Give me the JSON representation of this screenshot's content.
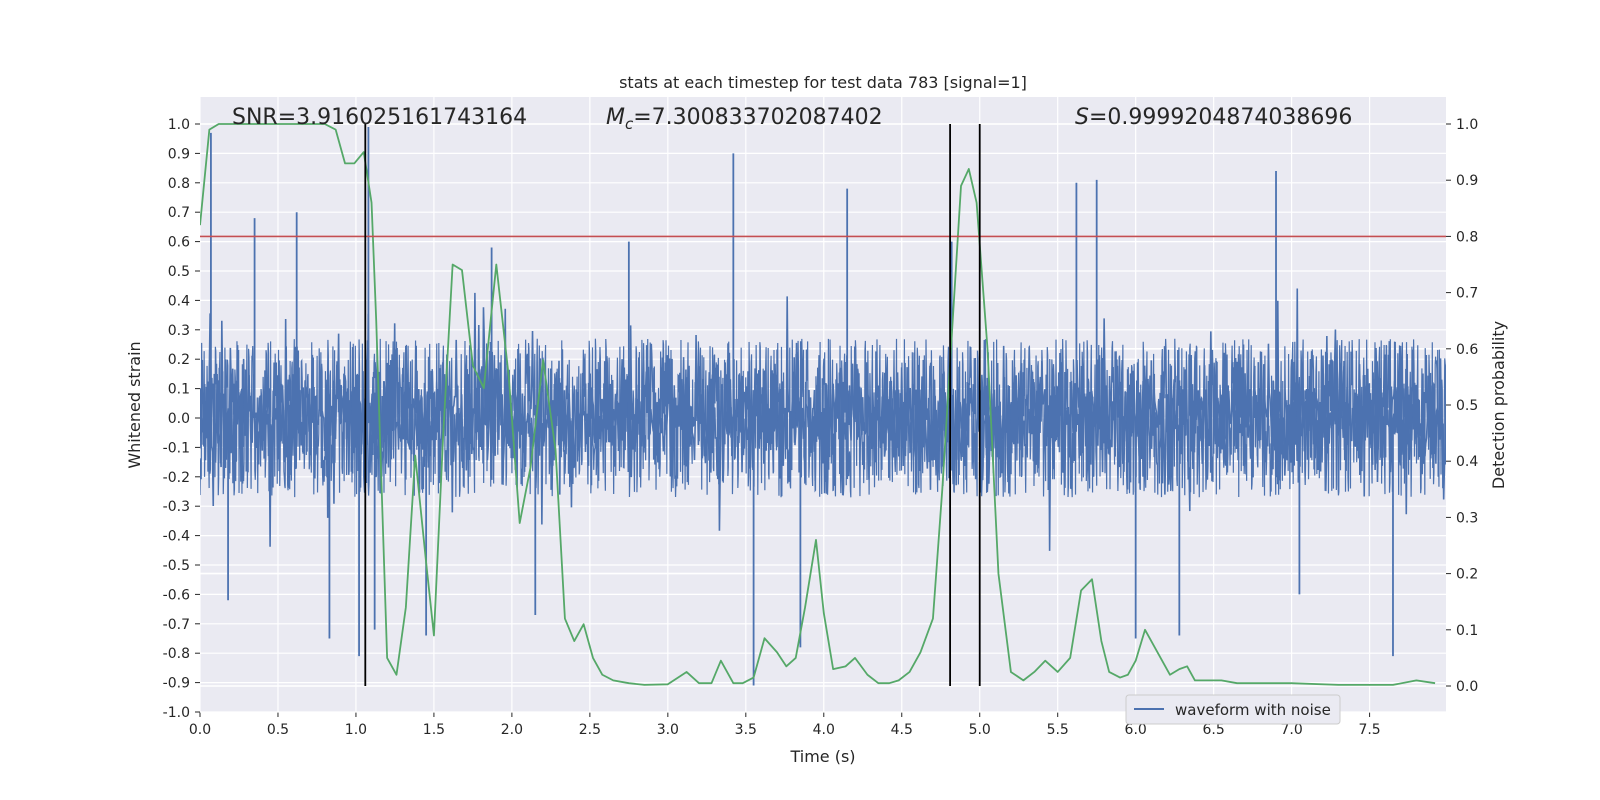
{
  "chart_data": {
    "type": "line",
    "title": "stats at each timestep for test data 783 [signal=1]",
    "xlabel": "Time (s)",
    "ylabel": "Whitened strain",
    "ylabel_right": "Detection probability",
    "xlim": [
      0.0,
      7.99
    ],
    "ylim": [
      -1.0,
      1.0
    ],
    "ylim_right": [
      -0.05,
      1.05
    ],
    "xticks": [
      "0.0",
      "0.5",
      "1.0",
      "1.5",
      "2.0",
      "2.5",
      "3.0",
      "3.5",
      "4.0",
      "4.5",
      "5.0",
      "5.5",
      "6.0",
      "6.5",
      "7.0",
      "7.5"
    ],
    "yticks": [
      "1.0",
      "0.9",
      "0.8",
      "0.7",
      "0.6",
      "0.5",
      "0.4",
      "0.3",
      "0.2",
      "0.1",
      "0.0",
      "-0.1",
      "-0.2",
      "-0.3",
      "-0.4",
      "-0.5",
      "-0.6",
      "-0.7",
      "-0.8",
      "-0.9",
      "-1.0"
    ],
    "yticks_right": [
      "1.0",
      "0.9",
      "0.8",
      "0.7",
      "0.6",
      "0.5",
      "0.4",
      "0.3",
      "0.2",
      "0.1",
      "0.0"
    ],
    "annotations": {
      "snr": "SNR=3.916025161743164",
      "mc_symbol": "M",
      "mc_subscript": "c",
      "mc_value": "=7.300833702087402",
      "s_symbol": "S",
      "s_value": "=0.9999204874038696"
    },
    "threshold_line": {
      "y_right": 0.8,
      "color": "#c44e52"
    },
    "vertical_markers": [
      1.06,
      4.81,
      5.0
    ],
    "series": [
      {
        "name": "waveform with noise",
        "axis": "left",
        "color": "#4c72b0",
        "description": "dense whitened strain noise, envelope approx ±0.3 with spikes to ±0.9",
        "peaks": [
          {
            "x": 0.07,
            "y": 0.97
          },
          {
            "x": 0.18,
            "y": -0.62
          },
          {
            "x": 0.35,
            "y": 0.68
          },
          {
            "x": 0.62,
            "y": 0.7
          },
          {
            "x": 0.83,
            "y": -0.75
          },
          {
            "x": 1.02,
            "y": -0.81
          },
          {
            "x": 1.08,
            "y": 0.99
          },
          {
            "x": 1.12,
            "y": -0.72
          },
          {
            "x": 1.45,
            "y": -0.74
          },
          {
            "x": 1.87,
            "y": 0.58
          },
          {
            "x": 2.15,
            "y": -0.67
          },
          {
            "x": 2.75,
            "y": 0.6
          },
          {
            "x": 3.42,
            "y": 0.9
          },
          {
            "x": 3.55,
            "y": -0.91
          },
          {
            "x": 3.85,
            "y": -0.78
          },
          {
            "x": 4.15,
            "y": 0.78
          },
          {
            "x": 4.82,
            "y": 0.6
          },
          {
            "x": 5.62,
            "y": 0.8
          },
          {
            "x": 5.75,
            "y": 0.81
          },
          {
            "x": 6.0,
            "y": -0.75
          },
          {
            "x": 6.28,
            "y": -0.74
          },
          {
            "x": 6.9,
            "y": 0.84
          },
          {
            "x": 7.05,
            "y": -0.6
          },
          {
            "x": 7.65,
            "y": -0.81
          }
        ]
      },
      {
        "name": "detection probability",
        "axis": "right",
        "color": "#55a868",
        "x": [
          0.0,
          0.06,
          0.12,
          0.19,
          0.3,
          0.5,
          0.7,
          0.8,
          0.87,
          0.93,
          0.99,
          1.05,
          1.1,
          1.13,
          1.2,
          1.26,
          1.32,
          1.38,
          1.45,
          1.5,
          1.56,
          1.62,
          1.68,
          1.75,
          1.82,
          1.9,
          1.98,
          2.05,
          2.12,
          2.2,
          2.28,
          2.34,
          2.4,
          2.46,
          2.52,
          2.58,
          2.65,
          2.75,
          2.85,
          3.0,
          3.12,
          3.2,
          3.28,
          3.34,
          3.42,
          3.48,
          3.55,
          3.62,
          3.7,
          3.76,
          3.82,
          3.88,
          3.95,
          4.0,
          4.06,
          4.14,
          4.2,
          4.28,
          4.35,
          4.42,
          4.48,
          4.55,
          4.62,
          4.7,
          4.76,
          4.82,
          4.88,
          4.93,
          4.98,
          5.05,
          5.12,
          5.2,
          5.28,
          5.35,
          5.42,
          5.5,
          5.58,
          5.65,
          5.72,
          5.78,
          5.83,
          5.9,
          5.95,
          6.0,
          6.06,
          6.14,
          6.22,
          6.28,
          6.33,
          6.38,
          6.46,
          6.55,
          6.65,
          6.8,
          7.0,
          7.3,
          7.65,
          7.8,
          7.92
        ],
        "y": [
          0.82,
          0.99,
          1.0,
          1.0,
          1.0,
          1.0,
          1.0,
          1.0,
          0.99,
          0.93,
          0.93,
          0.95,
          0.86,
          0.65,
          0.05,
          0.02,
          0.14,
          0.41,
          0.22,
          0.09,
          0.45,
          0.75,
          0.74,
          0.57,
          0.53,
          0.75,
          0.55,
          0.29,
          0.39,
          0.58,
          0.42,
          0.12,
          0.08,
          0.11,
          0.05,
          0.02,
          0.01,
          0.005,
          0.002,
          0.003,
          0.025,
          0.005,
          0.005,
          0.045,
          0.005,
          0.005,
          0.015,
          0.085,
          0.06,
          0.035,
          0.05,
          0.14,
          0.26,
          0.13,
          0.03,
          0.035,
          0.05,
          0.02,
          0.005,
          0.005,
          0.01,
          0.025,
          0.06,
          0.12,
          0.35,
          0.62,
          0.89,
          0.92,
          0.86,
          0.6,
          0.2,
          0.025,
          0.01,
          0.025,
          0.045,
          0.025,
          0.05,
          0.17,
          0.19,
          0.08,
          0.025,
          0.015,
          0.02,
          0.045,
          0.1,
          0.06,
          0.02,
          0.03,
          0.035,
          0.01,
          0.01,
          0.01,
          0.005,
          0.005,
          0.005,
          0.002,
          0.002,
          0.01,
          0.005
        ]
      }
    ],
    "legend": {
      "entries": [
        "waveform with noise"
      ],
      "location": "lower-right"
    }
  }
}
